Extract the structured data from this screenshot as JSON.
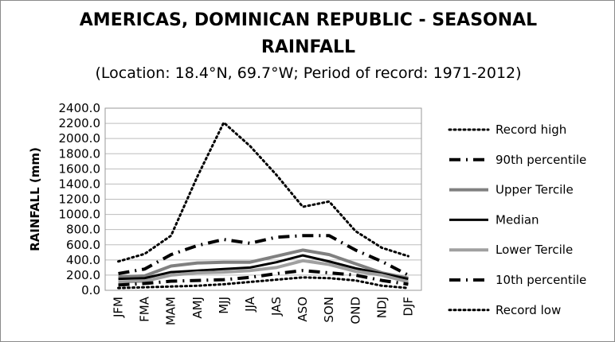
{
  "chart_data": {
    "type": "line",
    "title_line1": "AMERICAS, DOMINICAN REPUBLIC - SEASONAL",
    "title_line2": "RAINFALL",
    "subtitle": "(Location: 18.4°N, 69.7°W; Period of record: 1971-2012)",
    "ylabel": "RAINFALL (mm)",
    "xlabel": "",
    "ylim": [
      0,
      2400
    ],
    "ytick_step": 200,
    "ytick_labels": [
      "0.0",
      "200.0",
      "400.0",
      "600.0",
      "800.0",
      "1000.0",
      "1200.0",
      "1400.0",
      "1600.0",
      "1800.0",
      "2000.0",
      "2200.0",
      "2400.0"
    ],
    "grid": true,
    "legend_position": "right",
    "categories": [
      "JFM",
      "FMA",
      "MAM",
      "AMJ",
      "MJJ",
      "JJA",
      "JAS",
      "ASO",
      "SON",
      "OND",
      "NDJ",
      "DJF"
    ],
    "series": [
      {
        "name": "Record high",
        "color": "#000000",
        "style": "dotted",
        "values": [
          380,
          480,
          720,
          1500,
          2210,
          1900,
          1520,
          1100,
          1170,
          780,
          560,
          450
        ]
      },
      {
        "name": "90th percentile",
        "color": "#000000",
        "style": "dashdot",
        "values": [
          220,
          280,
          470,
          590,
          670,
          620,
          700,
          720,
          720,
          530,
          380,
          200
        ]
      },
      {
        "name": "Upper Tercile",
        "color": "#808080",
        "style": "solid",
        "values": [
          175,
          190,
          320,
          360,
          370,
          370,
          450,
          530,
          470,
          350,
          230,
          160
        ]
      },
      {
        "name": "Median",
        "color": "#000000",
        "style": "solid",
        "values": [
          150,
          160,
          240,
          260,
          280,
          300,
          370,
          460,
          380,
          290,
          220,
          150
        ]
      },
      {
        "name": "Lower Tercile",
        "color": "#a0a0a0",
        "style": "solid",
        "values": [
          110,
          120,
          200,
          230,
          240,
          260,
          300,
          390,
          340,
          250,
          200,
          110
        ]
      },
      {
        "name": "10th percentile",
        "color": "#000000",
        "style": "dashdot",
        "values": [
          70,
          90,
          120,
          130,
          140,
          170,
          220,
          260,
          230,
          200,
          130,
          80
        ]
      },
      {
        "name": "Record low",
        "color": "#000000",
        "style": "dotted",
        "values": [
          30,
          40,
          50,
          60,
          80,
          110,
          140,
          170,
          160,
          130,
          60,
          30
        ]
      }
    ]
  }
}
